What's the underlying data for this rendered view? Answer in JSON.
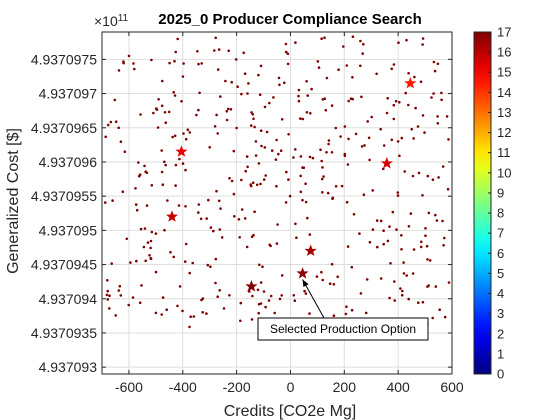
{
  "chart_data": {
    "type": "scatter",
    "title": "2025_0 Producer Compliance Search",
    "xlabel": "Credits [CO2e Mg]",
    "ylabel": "Generalized Cost [$]",
    "y_exponent_label": "×10",
    "y_exponent_power": "11",
    "xlim": [
      -700,
      600
    ],
    "ylim": [
      4.9370929,
      4.9370979
    ],
    "xticks": [
      -600,
      -400,
      -200,
      0,
      200,
      400,
      600
    ],
    "xtick_labels": [
      "-600",
      "-400",
      "-200",
      "0",
      "200",
      "400",
      "600"
    ],
    "yticks": [
      4.937093,
      4.9370935,
      4.937094,
      4.9370945,
      4.937095,
      4.9370955,
      4.937096,
      4.9370965,
      4.937097,
      4.9370975
    ],
    "ytick_labels": [
      "4.937093",
      "4.9370935",
      "4.937094",
      "4.9370945",
      "4.937095",
      "4.9370955",
      "4.937096",
      "4.9370965",
      "4.937097",
      "4.9370975"
    ],
    "grid": true,
    "colormap": "jet",
    "colorbar": {
      "range": [
        0,
        17
      ],
      "ticks": [
        0,
        1,
        2,
        3,
        4,
        5,
        6,
        7,
        8,
        9,
        10,
        11,
        12,
        13,
        14,
        15,
        16,
        17
      ],
      "tick_labels": [
        "0",
        "1",
        "2",
        "3",
        "4",
        "5",
        "6",
        "7",
        "8",
        "9",
        "10",
        "11",
        "12",
        "13",
        "14",
        "15",
        "16",
        "17"
      ]
    },
    "candidate_marker_color": "#800000",
    "selected_points": [
      {
        "x": 445,
        "y": 4.93709715,
        "c": 14.5
      },
      {
        "x": -405,
        "y": 4.93709615,
        "c": 15.3
      },
      {
        "x": 358,
        "y": 4.93709598,
        "c": 15.6
      },
      {
        "x": -440,
        "y": 4.9370952,
        "c": 15.8
      },
      {
        "x": 75,
        "y": 4.9370947,
        "c": 16.4
      },
      {
        "x": 45,
        "y": 4.93709437,
        "c": 16.8
      },
      {
        "x": -145,
        "y": 4.93709418,
        "c": 17
      }
    ],
    "annotation": {
      "text": "Selected Production Option",
      "arrow_to": {
        "x": 45,
        "y": 4.93709437
      }
    }
  }
}
